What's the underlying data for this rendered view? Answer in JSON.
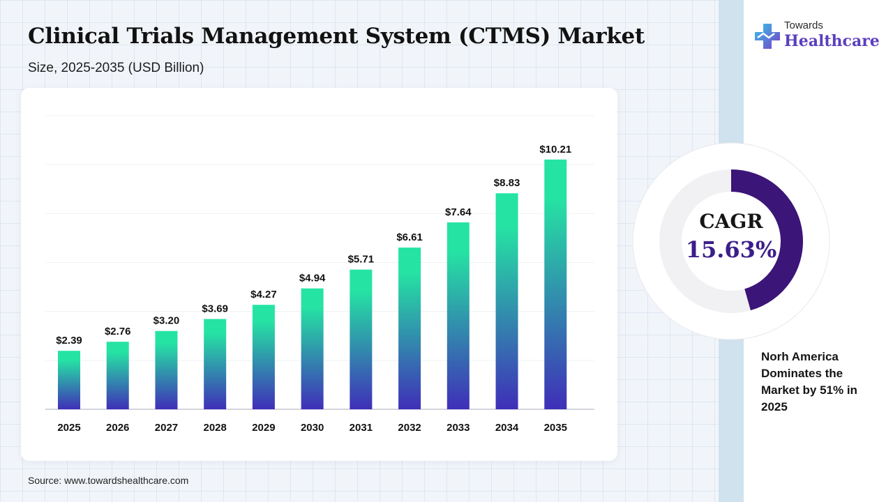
{
  "header": {
    "title": "Clinical Trials Management System (CTMS) Market",
    "subtitle": "Size, 2025-2035 (USD Billion)"
  },
  "logo": {
    "top_text": "Towards",
    "main_text": "Healthcare"
  },
  "colors": {
    "bar_top": "#25e4a3",
    "bar_bottom": "#3f2fb8",
    "donut_arc": "#3b1578",
    "donut_track": "#f1f1f3",
    "accent_text": "#3b1e8a"
  },
  "chart_data": {
    "type": "bar",
    "categories": [
      "2025",
      "2026",
      "2027",
      "2028",
      "2029",
      "2030",
      "2031",
      "2032",
      "2033",
      "2034",
      "2035"
    ],
    "values": [
      2.39,
      2.76,
      3.2,
      3.69,
      4.27,
      4.94,
      5.71,
      6.61,
      7.64,
      8.83,
      10.21
    ],
    "labels": [
      "$2.39",
      "$2.76",
      "$3.20",
      "$3.69",
      "$4.27",
      "$4.94",
      "$5.71",
      "$6.61",
      "$7.64",
      "$8.83",
      "$10.21"
    ],
    "title": "Clinical Trials Management System (CTMS) Market",
    "subtitle": "Size, 2025-2035 (USD Billion)",
    "xlabel": "",
    "ylabel": "",
    "ylim": [
      0,
      12
    ],
    "grid": true,
    "legend": "none"
  },
  "cagr": {
    "label": "CAGR",
    "value": "15.63%",
    "fraction": 0.4563
  },
  "note": "Norh America Dominates the Market by 51% in 2025",
  "source": "Source: www.towardshealthcare.com"
}
